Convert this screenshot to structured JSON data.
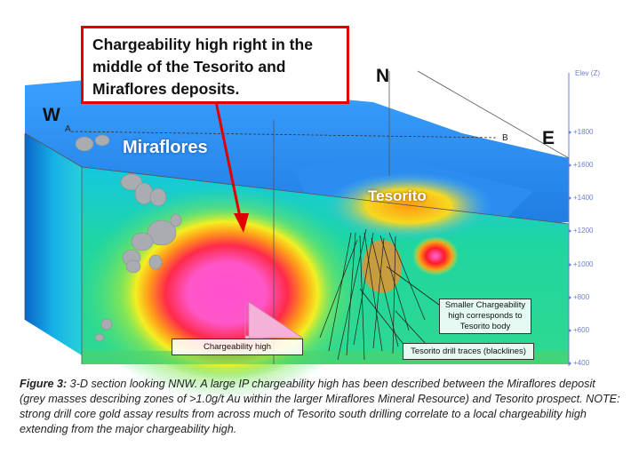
{
  "callout": {
    "line1": "Chargeability high right in the",
    "line2": "middle of the Tesorito and",
    "line3": "Miraflores deposits."
  },
  "scene_labels": {
    "miraflores": "Miraflores",
    "tesorito": "Tesorito",
    "west": "W",
    "east": "E",
    "north": "N",
    "point_a": "A",
    "point_b": "B"
  },
  "elevation_axis": {
    "title": "Elev (Z)",
    "ticks": [
      "+1800",
      "+1600",
      "+1400",
      "+1200",
      "+1000",
      "+800",
      "+600",
      "+400"
    ]
  },
  "annotations": {
    "chargeability_high": "Chargeability high",
    "smaller_l1": "Smaller Chargeability",
    "smaller_l2": "high corresponds to",
    "smaller_l3": "Tesorito body",
    "drill_traces": "Tesorito drill traces (blacklines)"
  },
  "caption": {
    "label": "Figure 3:",
    "text": " 3-D section looking NNW. A large IP chargeability high has been described between the Miraflores deposit (grey masses describing zones of >1.0g/t Au within the larger Miraflores Mineral Resource) and Tesorito prospect.  NOTE: strong drill core gold assay results from across much of Tesorito south drilling correlate to a local chargeability high extending from the major chargeability high."
  },
  "colors": {
    "callout_border": "#e00000",
    "arrow": "#e00000",
    "axis": "#6a7fd8"
  }
}
